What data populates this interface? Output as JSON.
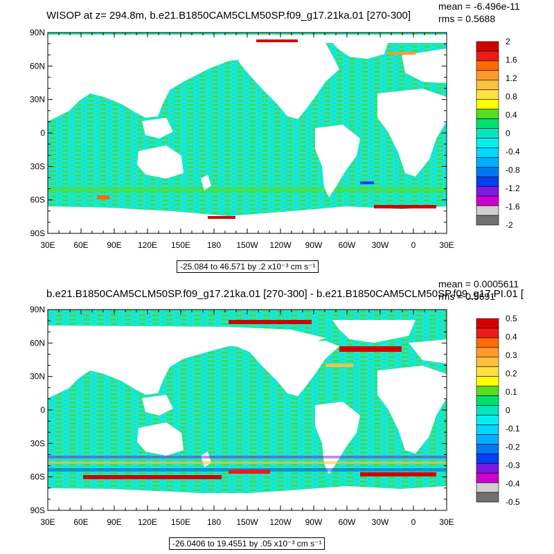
{
  "palette": [
    "#d40000",
    "#ee1a1a",
    "#ff6a00",
    "#ff9a2e",
    "#ffc040",
    "#ffe040",
    "#ffff00",
    "#55dd22",
    "#00e070",
    "#00e8c0",
    "#00f0f0",
    "#00d8ff",
    "#00b0ff",
    "#0078f0",
    "#0040f0",
    "#7a1ae0",
    "#d000d0",
    "#d0d0d0",
    "#707070"
  ],
  "ocean_base": "#22e6c8",
  "land_color": "#ffffff",
  "chart_data": [
    {
      "type": "heatmap",
      "title": "WISOP at z= 294.8m, b.e21.B1850CAM5CLM50SP.f09_g17.21ka.01 [270-300]",
      "mean_text": "mean = -6.496e-11",
      "rms_text": "rms = 0.5688",
      "x_ticks": [
        "30E",
        "60E",
        "90E",
        "120E",
        "150E",
        "180",
        "150W",
        "120W",
        "90W",
        "60W",
        "30W",
        "0",
        "30E"
      ],
      "y_ticks": [
        "90N",
        "60N",
        "30N",
        "0",
        "30S",
        "60S",
        "90S"
      ],
      "colorbar_labels": [
        "2",
        "1.6",
        "1.2",
        "0.8",
        "0.4",
        "0",
        "-0.4",
        "-0.8",
        "-1.2",
        "-1.6",
        "-2"
      ],
      "range_text": "-25.084 to 46.571 by .2 x10⁻³ cm s⁻¹"
    },
    {
      "type": "heatmap",
      "title": "b.e21.B1850CAM5CLM50SP.f09_g17.21ka.01 [270-300] - b.e21.B1850CAM5CLM50SP.f09_g17.PI.01 [",
      "mean_text": "mean = 0.0005611",
      "rms_text": "rms = 0.5691",
      "x_ticks": [
        "30E",
        "60E",
        "90E",
        "120E",
        "150E",
        "180",
        "150W",
        "120W",
        "90W",
        "60W",
        "30W",
        "0",
        "30E"
      ],
      "y_ticks": [
        "90N",
        "60N",
        "30N",
        "0",
        "30S",
        "60S",
        "90S"
      ],
      "colorbar_labels": [
        "0.5",
        "0.4",
        "0.3",
        "0.2",
        "0.1",
        "0",
        "-0.1",
        "-0.2",
        "-0.3",
        "-0.4",
        "-0.5"
      ],
      "range_text": "-26.0406 to 19.4551 by .05 x10⁻³ cm s⁻¹"
    }
  ]
}
